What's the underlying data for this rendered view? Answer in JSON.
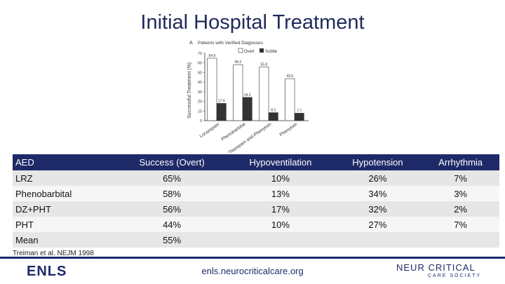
{
  "page": {
    "title": "Initial Hospital Treatment"
  },
  "chart_data": {
    "type": "bar",
    "panel_label": "A",
    "title": "Patients with Verified Diagnoses",
    "ylabel": "Successful Treatment (%)",
    "ylim": [
      0,
      70
    ],
    "yticks": [
      0,
      10,
      20,
      30,
      40,
      50,
      60,
      70
    ],
    "categories": [
      "Lorazepam",
      "Phenobarbital",
      "Diazepam and Phenytoin",
      "Phenytoin"
    ],
    "series": [
      {
        "name": "Overt",
        "color": "#ffffff",
        "values": [
          64.9,
          58.2,
          55.8,
          43.6
        ],
        "labels": [
          "64.9",
          "58.2",
          "55.8",
          "43.6"
        ]
      },
      {
        "name": "Subtle",
        "color": "#333333",
        "values": [
          17.9,
          24.2,
          8.3,
          7.7
        ],
        "labels": [
          "17.9",
          "24.2",
          "8.3",
          "7.7"
        ]
      }
    ]
  },
  "table": {
    "headers": [
      "AED",
      "Success (Overt)",
      "Hypoventilation",
      "Hypotension",
      "Arrhythmia"
    ],
    "rows": [
      [
        "LRZ",
        "65%",
        "10%",
        "26%",
        "7%"
      ],
      [
        "Phenobarbital",
        "58%",
        "13%",
        "34%",
        "3%"
      ],
      [
        "DZ+PHT",
        "56%",
        "17%",
        "32%",
        "2%"
      ],
      [
        "PHT",
        "44%",
        "10%",
        "27%",
        "7%"
      ],
      [
        "Mean",
        "55%",
        "",
        "",
        ""
      ]
    ]
  },
  "citation": "Treiman et al. NEJM 1998",
  "footer": {
    "left_logo": "ENLS",
    "url": "enls.neurocriticalcare.org",
    "right_logo": "NEUR CRITICAL",
    "right_sub": "CARE SOCIETY"
  },
  "colors": {
    "navy": "#1e2a68",
    "title": "#1f2a5a"
  }
}
